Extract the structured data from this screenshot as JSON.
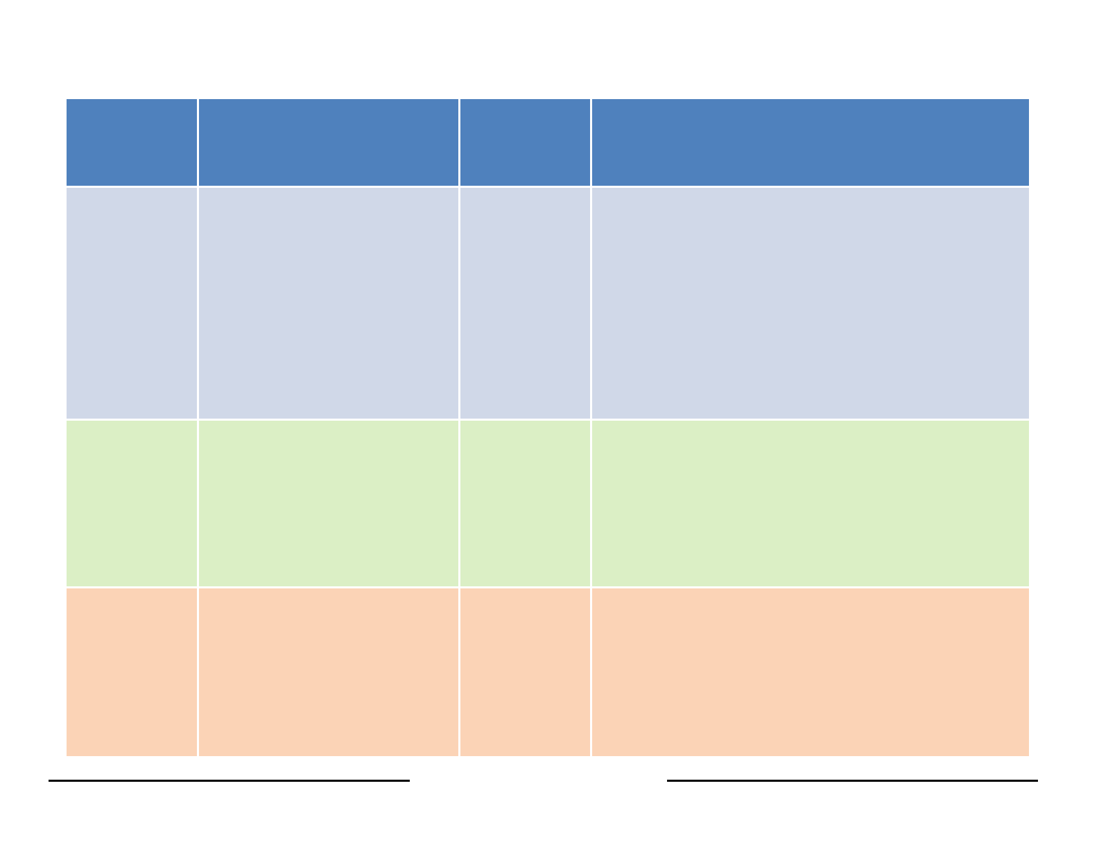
{
  "table": {
    "header": [
      "",
      "",
      "",
      ""
    ],
    "rows": [
      {
        "cells": [
          "",
          "",
          "",
          ""
        ]
      },
      {
        "cells": [
          "",
          "",
          "",
          ""
        ]
      },
      {
        "cells": [
          "",
          "",
          "",
          ""
        ]
      }
    ]
  },
  "colors": {
    "header": "#4f81bd",
    "row_1": "#d0d8e8",
    "row_2": "#dbefc5",
    "row_3": "#fbd3b6",
    "rule": "#000000"
  }
}
